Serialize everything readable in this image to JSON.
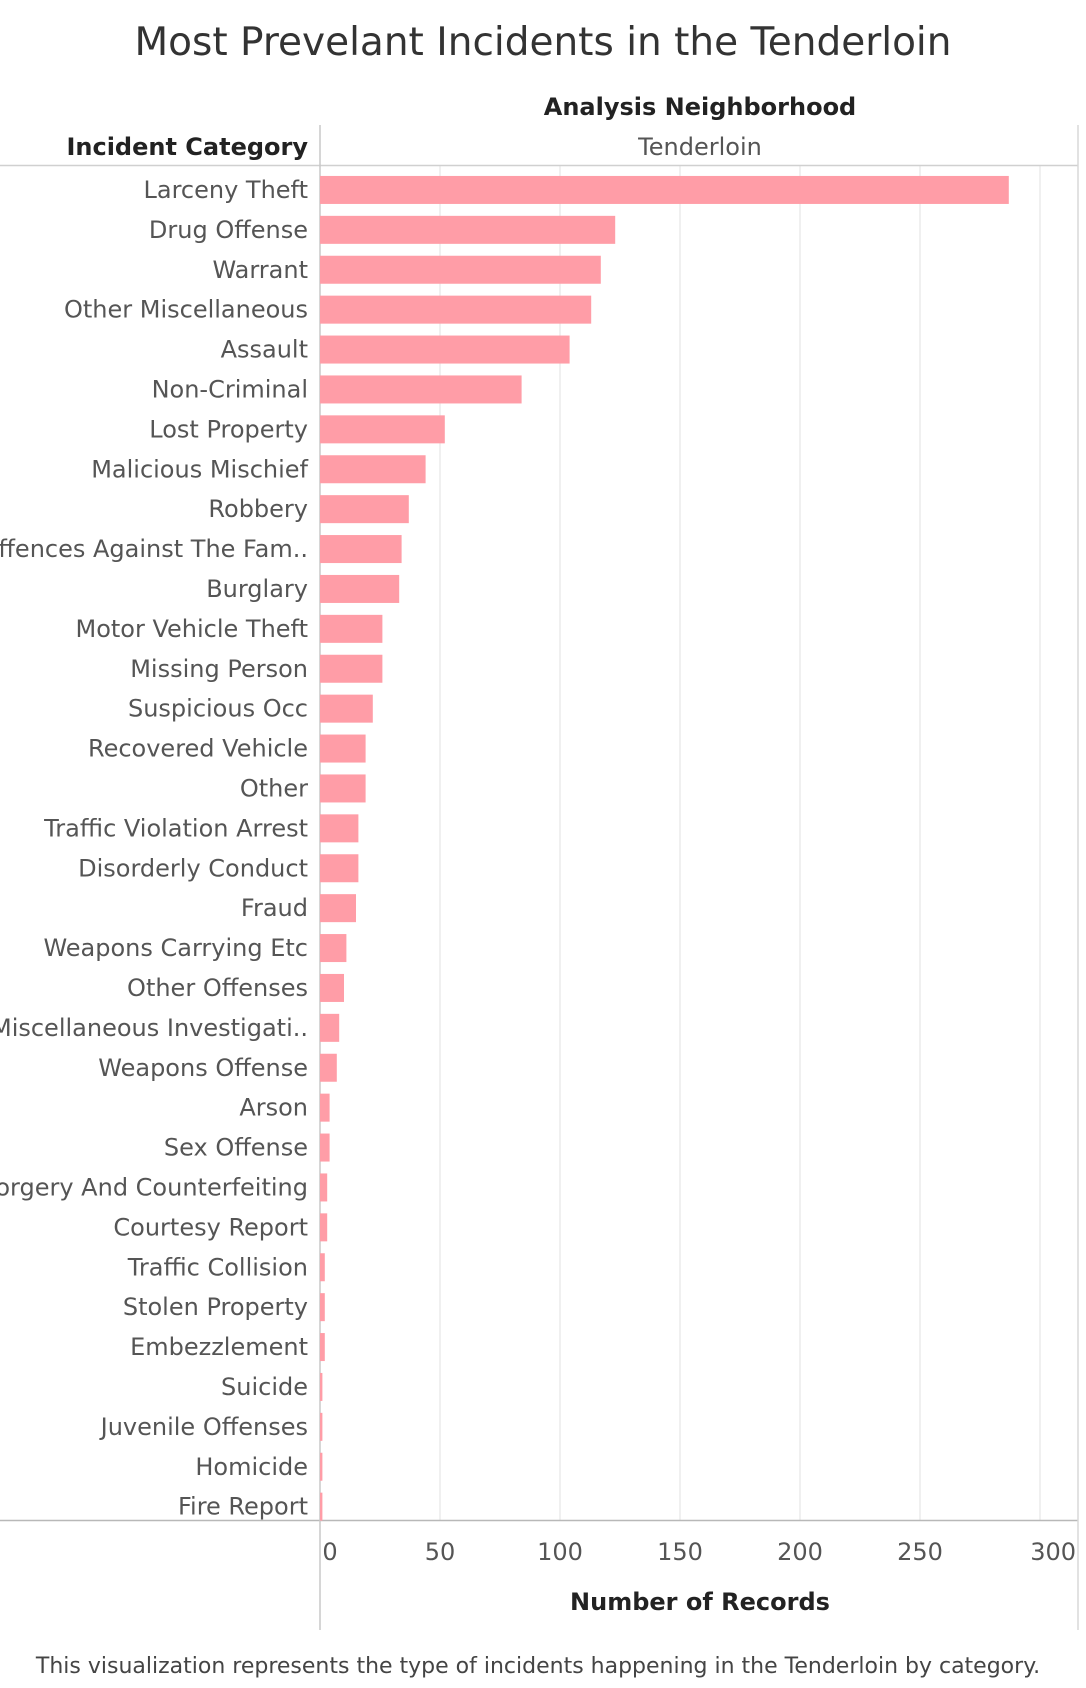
{
  "chart_data": {
    "type": "bar",
    "orientation": "horizontal",
    "title": "Most Prevelant Incidents in the Tenderloin",
    "column_header": "Analysis Neighborhood",
    "column_value": "Tenderloin",
    "row_header": "Incident Category",
    "xlabel": "Number of Records",
    "xlim": [
      0,
      300
    ],
    "xticks": [
      0,
      50,
      100,
      150,
      200,
      250,
      300
    ],
    "grid": true,
    "bar_color": "#ff9da7",
    "categories": [
      "Larceny Theft",
      "Drug Offense",
      "Warrant",
      "Other Miscellaneous",
      "Assault",
      "Non-Criminal",
      "Lost Property",
      "Malicious Mischief",
      "Robbery",
      "Offences Against The Fam..",
      "Burglary",
      "Motor Vehicle Theft",
      "Missing Person",
      "Suspicious Occ",
      "Recovered Vehicle",
      "Other",
      "Traffic Violation Arrest",
      "Disorderly Conduct",
      "Fraud",
      "Weapons Carrying Etc",
      "Other Offenses",
      "Miscellaneous Investigati..",
      "Weapons Offense",
      "Arson",
      "Sex Offense",
      "Forgery And Counterfeiting",
      "Courtesy Report",
      "Traffic Collision",
      "Stolen Property",
      "Embezzlement",
      "Suicide",
      "Juvenile Offenses",
      "Homicide",
      "Fire Report"
    ],
    "values": [
      287,
      123,
      117,
      113,
      104,
      84,
      52,
      44,
      37,
      34,
      33,
      26,
      26,
      22,
      19,
      19,
      16,
      16,
      15,
      11,
      10,
      8,
      7,
      4,
      4,
      3,
      3,
      2,
      2,
      2,
      1,
      1,
      1,
      1
    ]
  },
  "caption": "This visualization represents the type of incidents happening in the Tenderloin by category."
}
